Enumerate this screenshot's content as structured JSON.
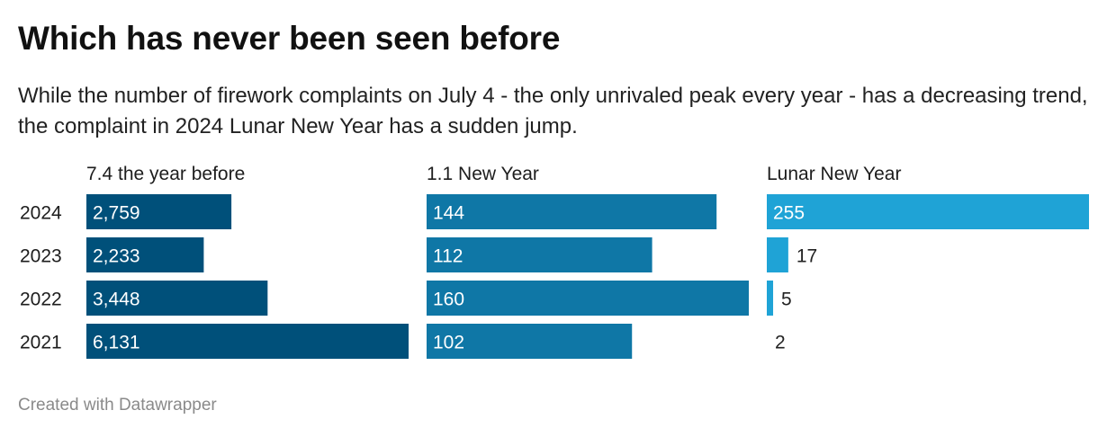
{
  "title": "Which has never been seen before",
  "subtitle": "While the number of firework complaints on July 4 - the only unrivaled peak every year - has a decreasing trend, the complaint in 2024 Lunar New Year has a sudden jump.",
  "footer": "Created with Datawrapper",
  "colors": {
    "col1": "#00507a",
    "col2": "#0f77a6",
    "col3": "#1fa3d6",
    "label_inside": "#ffffff",
    "label_outside": "#222222"
  },
  "chart_data": {
    "type": "bar",
    "orientation": "horizontal",
    "categories": [
      "2024",
      "2023",
      "2022",
      "2021"
    ],
    "series": [
      {
        "name": "7.4 the year before",
        "values": [
          2759,
          2233,
          3448,
          6131
        ]
      },
      {
        "name": "1.1 New Year",
        "values": [
          144,
          112,
          160,
          102
        ]
      },
      {
        "name": "Lunar New Year",
        "values": [
          255,
          17,
          5,
          2
        ]
      }
    ],
    "value_labels": [
      [
        "2,759",
        "2,233",
        "3,448",
        "6,131"
      ],
      [
        "144",
        "112",
        "160",
        "102"
      ],
      [
        "255",
        "17",
        "5",
        "2"
      ]
    ],
    "shared_scale": false
  }
}
